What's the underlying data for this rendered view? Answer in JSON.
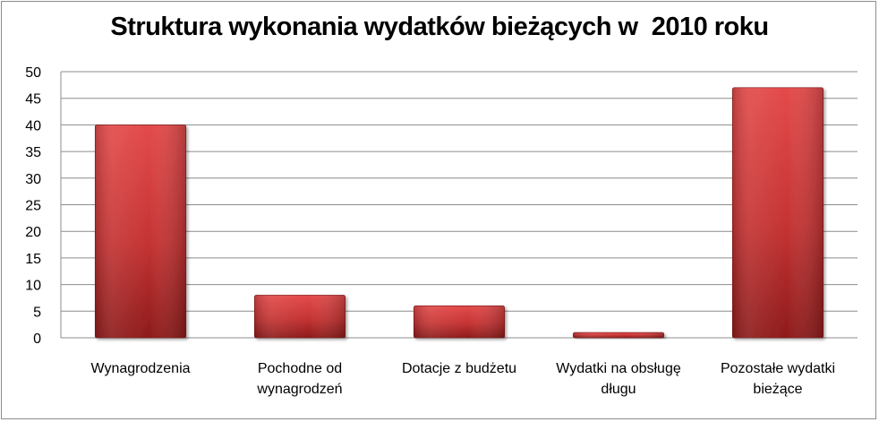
{
  "chart_data": {
    "type": "bar",
    "title": "Struktura wykonania wydatków bieżących w  2010 roku",
    "categories": [
      [
        "Wynagrodzenia"
      ],
      [
        "Pochodne od",
        "wynagrodzeń"
      ],
      [
        "Dotacje z budżetu"
      ],
      [
        "Wydatki na obsługę",
        "długu"
      ],
      [
        "Pozostałe wydatki",
        "bieżące"
      ]
    ],
    "values": [
      40,
      8,
      6,
      1,
      47
    ],
    "ylim": [
      0,
      50
    ],
    "yticks": [
      0,
      5,
      10,
      15,
      20,
      25,
      30,
      35,
      40,
      45,
      50
    ],
    "grid": true,
    "legend": "none",
    "colors": {
      "bar_top": "#e04848",
      "bar_bottom": "#8f1c1c",
      "grid": "#8c8c8c"
    }
  }
}
